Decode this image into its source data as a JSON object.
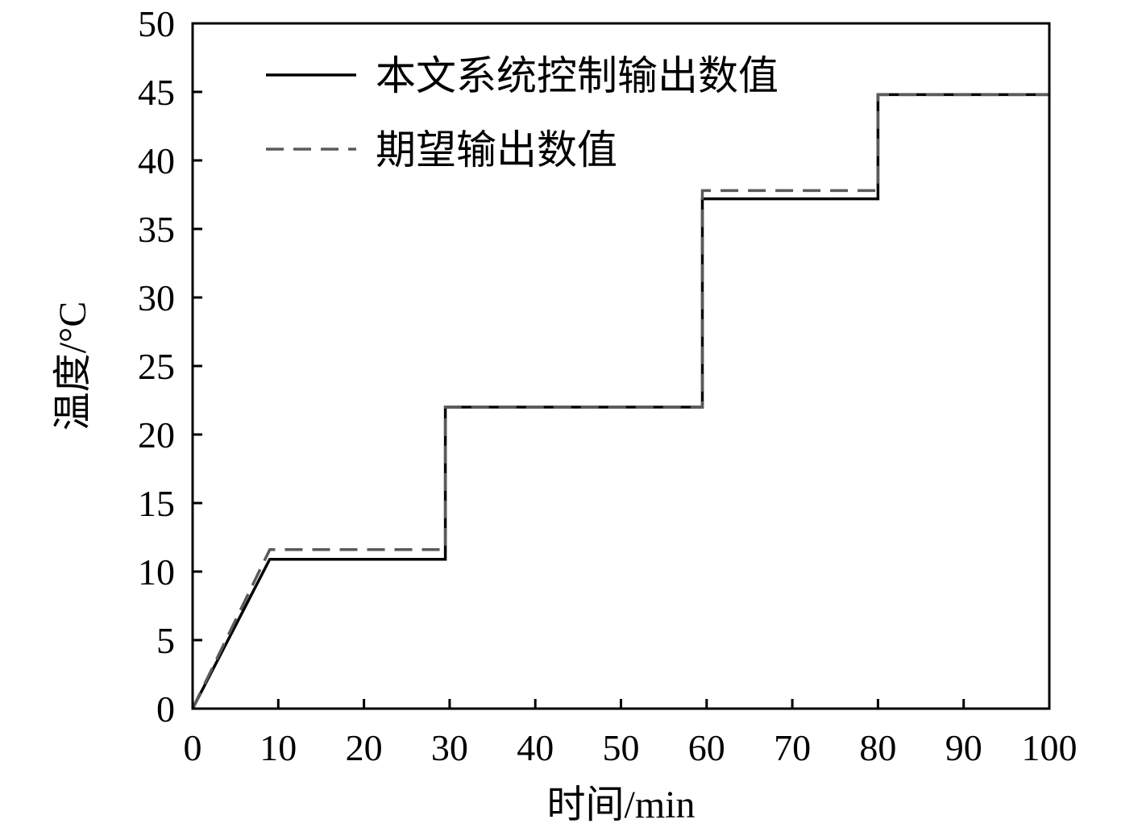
{
  "chart_data": {
    "type": "line",
    "xlabel": "时间/min",
    "ylabel": "温度/°C",
    "xlim": [
      0,
      100
    ],
    "ylim": [
      0,
      50
    ],
    "xticks": [
      0,
      10,
      20,
      30,
      40,
      50,
      60,
      70,
      80,
      90,
      100
    ],
    "yticks": [
      0,
      5,
      10,
      15,
      20,
      25,
      30,
      35,
      40,
      45,
      50
    ],
    "grid": false,
    "legend_position": "top-left",
    "series": [
      {
        "name": "本文系统控制输出数值",
        "color": "#000000",
        "style": "solid",
        "points": [
          [
            0,
            0
          ],
          [
            9,
            10.9
          ],
          [
            29.5,
            10.9
          ],
          [
            29.5,
            22
          ],
          [
            59.5,
            22
          ],
          [
            59.5,
            37.2
          ],
          [
            80,
            37.2
          ],
          [
            80,
            44.8
          ],
          [
            100,
            44.8
          ]
        ]
      },
      {
        "name": "期望输出数值",
        "color": "#5a5a5a",
        "style": "dashed",
        "points": [
          [
            0,
            0
          ],
          [
            9,
            11.6
          ],
          [
            29.5,
            11.6
          ],
          [
            29.5,
            22
          ],
          [
            59.5,
            22
          ],
          [
            59.5,
            37.8
          ],
          [
            80,
            37.8
          ],
          [
            80,
            44.8
          ],
          [
            100,
            44.8
          ]
        ]
      }
    ]
  }
}
